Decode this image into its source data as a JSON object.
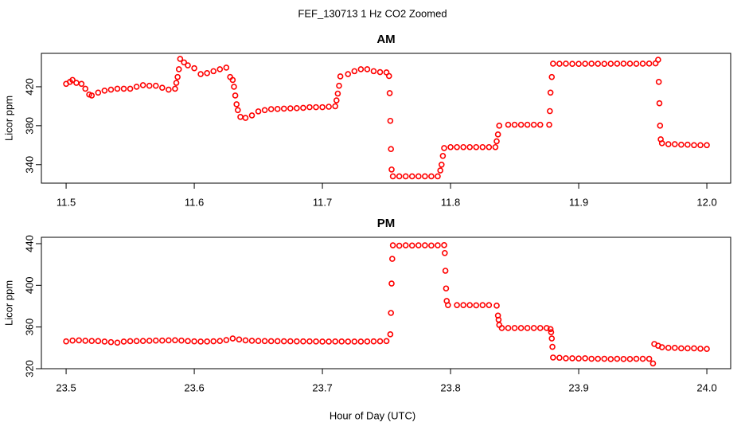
{
  "title": "FEF_130713  1 Hz CO2 Zoomed",
  "xlabel": "Hour of Day (UTC)",
  "chart_data": [
    {
      "type": "scatter",
      "title": "AM",
      "ylabel": "Licor ppm",
      "color": "#ff0000",
      "marker": "circle",
      "xlim": [
        11.4807,
        12.0186
      ],
      "ylim": [
        321,
        454.3
      ],
      "xticks": [
        11.5,
        11.6,
        11.7,
        11.8,
        11.9,
        {
          "value": 12,
          "label": "12.0"
        }
      ],
      "yticks": [
        340,
        380,
        420
      ],
      "x": [
        11.5,
        11.503,
        11.505,
        11.508,
        11.512,
        11.515,
        11.518,
        11.52,
        11.525,
        11.53,
        11.535,
        11.54,
        11.545,
        11.55,
        11.555,
        11.56,
        11.565,
        11.57,
        11.575,
        11.58,
        11.585,
        11.586,
        11.587,
        11.588,
        11.589,
        11.592,
        11.595,
        11.6,
        11.605,
        11.61,
        11.615,
        11.62,
        11.625,
        11.628,
        11.63,
        11.631,
        11.632,
        11.633,
        11.634,
        11.636,
        11.64,
        11.645,
        11.65,
        11.655,
        11.66,
        11.665,
        11.67,
        11.675,
        11.68,
        11.685,
        11.69,
        11.695,
        11.7,
        11.705,
        11.71,
        11.711,
        11.712,
        11.713,
        11.714,
        11.72,
        11.725,
        11.73,
        11.735,
        11.74,
        11.745,
        11.75,
        11.752,
        11.7525,
        11.753,
        11.7535,
        11.754,
        11.755,
        11.76,
        11.765,
        11.77,
        11.775,
        11.78,
        11.785,
        11.79,
        11.792,
        11.793,
        11.794,
        11.795,
        11.8,
        11.805,
        11.81,
        11.815,
        11.82,
        11.825,
        11.83,
        11.835,
        11.836,
        11.837,
        11.838,
        11.845,
        11.85,
        11.855,
        11.86,
        11.865,
        11.87,
        11.877,
        11.8775,
        11.878,
        11.879,
        11.88,
        11.885,
        11.89,
        11.895,
        11.9,
        11.905,
        11.91,
        11.915,
        11.92,
        11.925,
        11.93,
        11.935,
        11.94,
        11.945,
        11.95,
        11.955,
        11.96,
        11.962,
        11.9625,
        11.963,
        11.9635,
        11.964,
        11.965,
        11.97,
        11.975,
        11.98,
        11.985,
        11.99,
        11.995,
        12.0
      ],
      "values": [
        423,
        425,
        427,
        424,
        423,
        418,
        412,
        411,
        414,
        416,
        417,
        418,
        418,
        418,
        420,
        421.6,
        421,
        421,
        419,
        417,
        418,
        424,
        430,
        438,
        448.6,
        445,
        442,
        439,
        433,
        434,
        436,
        438,
        439.6,
        430,
        427,
        420,
        411,
        402,
        396,
        389,
        388,
        390.6,
        394.7,
        396,
        397,
        397.2,
        397.5,
        397.8,
        398,
        398.3,
        399,
        399,
        399,
        399.5,
        400,
        406,
        413,
        421,
        430.6,
        433,
        436,
        438,
        438,
        436,
        435,
        434.7,
        431,
        413.5,
        385,
        356,
        335,
        328,
        328,
        328,
        328,
        328,
        328,
        328,
        328,
        334,
        340,
        349,
        357,
        358,
        358,
        358,
        358,
        358,
        358,
        358,
        358,
        364,
        371,
        380,
        381,
        381,
        381,
        381,
        381,
        381,
        381,
        395,
        414,
        430,
        443.7,
        443.6,
        443.7,
        443.5,
        443.5,
        443.6,
        443.7,
        443.6,
        443.5,
        443.6,
        443.7,
        443.7,
        443.7,
        443.6,
        443.7,
        443.8,
        444,
        447.7,
        425,
        403,
        380,
        366,
        362,
        361,
        361,
        360.5,
        360.5,
        360,
        360,
        360
      ]
    },
    {
      "type": "scatter",
      "title": "PM",
      "ylabel": "Licor ppm",
      "color": "#ff0000",
      "marker": "circle",
      "xlim": [
        23.4807,
        24.0186
      ],
      "ylim": [
        320,
        446.1
      ],
      "xticks": [
        23.5,
        23.6,
        23.7,
        23.8,
        23.9,
        {
          "value": 24,
          "label": "24.0"
        }
      ],
      "yticks": [
        320,
        360,
        400,
        440
      ],
      "x": [
        23.5,
        23.505,
        23.51,
        23.515,
        23.52,
        23.525,
        23.53,
        23.535,
        23.54,
        23.545,
        23.55,
        23.555,
        23.56,
        23.565,
        23.57,
        23.575,
        23.58,
        23.585,
        23.59,
        23.595,
        23.6,
        23.605,
        23.61,
        23.615,
        23.62,
        23.625,
        23.63,
        23.635,
        23.64,
        23.645,
        23.65,
        23.655,
        23.66,
        23.665,
        23.67,
        23.675,
        23.68,
        23.685,
        23.69,
        23.695,
        23.7,
        23.705,
        23.71,
        23.715,
        23.72,
        23.725,
        23.73,
        23.735,
        23.74,
        23.745,
        23.75,
        23.753,
        23.7535,
        23.754,
        23.7545,
        23.755,
        23.76,
        23.765,
        23.77,
        23.775,
        23.78,
        23.785,
        23.79,
        23.795,
        23.7955,
        23.796,
        23.7965,
        23.797,
        23.798,
        23.805,
        23.81,
        23.815,
        23.82,
        23.825,
        23.83,
        23.836,
        23.837,
        23.8375,
        23.838,
        23.84,
        23.845,
        23.85,
        23.855,
        23.86,
        23.865,
        23.87,
        23.875,
        23.878,
        23.8785,
        23.879,
        23.8795,
        23.88,
        23.885,
        23.89,
        23.895,
        23.9,
        23.905,
        23.91,
        23.915,
        23.92,
        23.925,
        23.93,
        23.935,
        23.94,
        23.945,
        23.95,
        23.955,
        23.958,
        23.959,
        23.962,
        23.965,
        23.97,
        23.975,
        23.98,
        23.985,
        23.99,
        23.995,
        24.0
      ],
      "values": [
        346.2,
        347,
        347.2,
        346.8,
        346.6,
        346.5,
        346,
        345.5,
        345,
        346,
        346.4,
        346.5,
        346.6,
        346.8,
        347,
        347,
        347.2,
        347.3,
        347,
        346.5,
        346.2,
        346,
        346.1,
        346.3,
        346.6,
        347.5,
        349,
        348,
        347.2,
        346.8,
        346.6,
        346.5,
        346.4,
        346.4,
        346.3,
        346.3,
        346.2,
        346.2,
        346.2,
        346.1,
        346,
        346,
        346.1,
        346.1,
        346,
        346,
        346,
        346.1,
        346.2,
        346.3,
        346.5,
        353,
        373.5,
        401.7,
        425.4,
        438.4,
        438,
        438.4,
        438.2,
        438.4,
        438.4,
        438.2,
        438.4,
        438.6,
        431,
        414,
        397,
        385,
        381,
        381,
        381,
        381,
        380.8,
        381,
        381,
        380.5,
        371,
        367,
        362,
        359,
        359,
        359,
        359,
        359,
        359,
        359,
        359,
        358,
        355,
        349,
        341,
        330.7,
        330.5,
        330,
        330,
        329.8,
        330,
        329.5,
        329.5,
        329.5,
        329.2,
        329.5,
        329.3,
        329.3,
        329.5,
        329.5,
        329.5,
        325,
        343.7,
        342,
        340.6,
        340,
        340,
        339.5,
        339.5,
        339.5,
        339.2,
        339
      ]
    }
  ]
}
